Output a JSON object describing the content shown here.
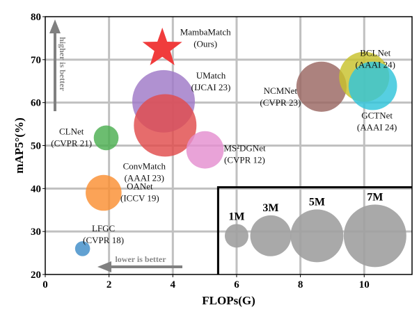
{
  "chart_data": {
    "type": "scatter",
    "subtype": "bubble",
    "title": "",
    "xlabel": "FLOPs(G)",
    "ylabel": "mAP5°(%)",
    "xlim": [
      0,
      11.5
    ],
    "ylim": [
      20,
      80
    ],
    "xticks": [
      0,
      2,
      4,
      6,
      8,
      10
    ],
    "yticks": [
      20,
      30,
      40,
      50,
      60,
      70,
      80
    ],
    "grid": true,
    "bubble_size_unit": "params (M), area proportional",
    "points": [
      {
        "name": "UMatch",
        "venue": "(IJCAI 23)",
        "x": 3.71,
        "y": 60.3,
        "params_m": 7.0,
        "color": "#9f79c7",
        "label_pos": "right-top"
      },
      {
        "name": "ConvMatch",
        "venue": "(AAAI 23)",
        "x": 3.76,
        "y": 54.7,
        "params_m": 7.0,
        "color": "#e04c4c",
        "label_pos": "below-left"
      },
      {
        "name": "CLNet",
        "venue": "(CVPR 21)",
        "x": 1.91,
        "y": 51.8,
        "params_m": 1.1,
        "color": "#4caf50",
        "label_pos": "left"
      },
      {
        "name": "MS²DGNet",
        "venue": "(CVPR 12)",
        "x": 5.01,
        "y": 49.0,
        "params_m": 2.5,
        "color": "#e48fd0",
        "label_pos": "right"
      },
      {
        "name": "OANet",
        "venue": "(ICCV 19)",
        "x": 1.83,
        "y": 39.0,
        "params_m": 2.3,
        "color": "#fa8f32",
        "label_pos": "right"
      },
      {
        "name": "LFGC",
        "venue": "(CVPR 18)",
        "x": 1.17,
        "y": 26.0,
        "params_m": 0.4,
        "color": "#3e8cc8",
        "label_pos": "right-top"
      },
      {
        "name": "NCMNet",
        "venue": "(CVPR 23)",
        "x": 8.66,
        "y": 63.7,
        "params_m": 4.5,
        "color": "#9a6661",
        "label_pos": "left"
      },
      {
        "name": "BCLNet",
        "venue": "(AAAI 24)",
        "x": 10.0,
        "y": 66.0,
        "params_m": 4.5,
        "color": "#c8c22c",
        "label_pos": "top"
      },
      {
        "name": "GCTNet",
        "venue": "(AAAI 24)",
        "x": 10.27,
        "y": 63.9,
        "params_m": 4.2,
        "color": "#31c5db",
        "label_pos": "below"
      }
    ],
    "highlight": {
      "name": "MambaMatch",
      "venue": "(Ours)",
      "x": 3.67,
      "y": 73.1,
      "marker": "star",
      "color": "#f03c3c"
    },
    "size_legend": {
      "placement": "bottom-right",
      "entries": [
        {
          "label": "1M",
          "params_m": 1,
          "x": 6.0
        },
        {
          "label": "3M",
          "params_m": 3,
          "x": 7.07
        },
        {
          "label": "5M",
          "params_m": 5,
          "x": 8.52
        },
        {
          "label": "7M",
          "params_m": 7,
          "x": 10.34
        }
      ],
      "y": 29.0,
      "box_from": {
        "x": 5.42,
        "y": 40.3
      },
      "color": "#a0a0a0"
    },
    "annotations": [
      {
        "text": "higher is better",
        "direction": "up",
        "color": "#808080"
      },
      {
        "text": "lower is better",
        "direction": "left",
        "color": "#808080"
      }
    ]
  }
}
